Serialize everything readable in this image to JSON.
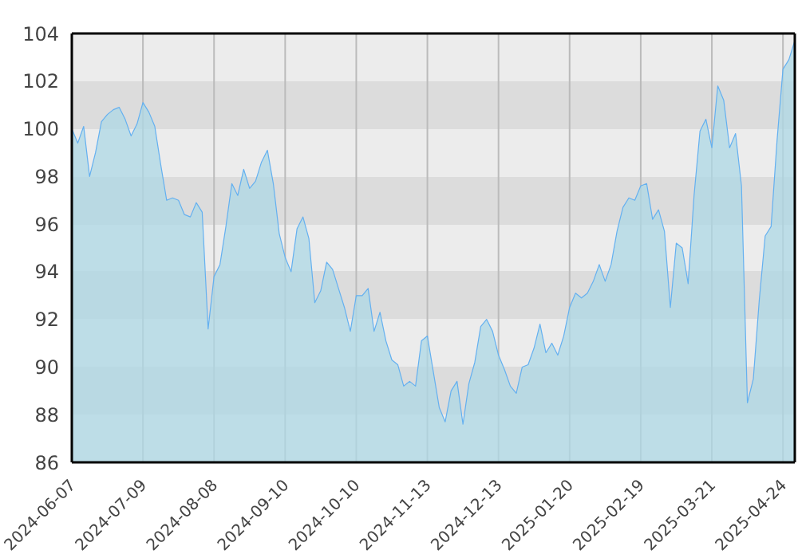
{
  "chart_data": {
    "type": "area",
    "categories": [
      "2024-06-07",
      null,
      null,
      null,
      null,
      null,
      null,
      null,
      null,
      null,
      null,
      null,
      "2024-07-09",
      null,
      null,
      null,
      null,
      null,
      null,
      null,
      null,
      null,
      null,
      null,
      "2024-08-08",
      null,
      null,
      null,
      null,
      null,
      null,
      null,
      null,
      null,
      null,
      null,
      "2024-09-10",
      null,
      null,
      null,
      null,
      null,
      null,
      null,
      null,
      null,
      null,
      null,
      "2024-10-10",
      null,
      null,
      null,
      null,
      null,
      null,
      null,
      null,
      null,
      null,
      null,
      "2024-11-13",
      null,
      null,
      null,
      null,
      null,
      null,
      null,
      null,
      null,
      null,
      null,
      "2024-12-13",
      null,
      null,
      null,
      null,
      null,
      null,
      null,
      null,
      null,
      null,
      null,
      "2025-01-20",
      null,
      null,
      null,
      null,
      null,
      null,
      null,
      null,
      null,
      null,
      null,
      "2025-02-19",
      null,
      null,
      null,
      null,
      null,
      null,
      null,
      null,
      null,
      null,
      null,
      "2025-03-21",
      null,
      null,
      null,
      null,
      null,
      null,
      null,
      null,
      null,
      null,
      null,
      "2025-04-24",
      null,
      null
    ],
    "series": [
      {
        "color": "#64b0f0",
        "values": [
          100.0,
          99.4,
          100.1,
          98.0,
          99.0,
          100.3,
          100.6,
          100.8,
          100.9,
          100.4,
          99.7,
          100.2,
          101.1,
          100.7,
          100.1,
          98.5,
          97.0,
          97.1,
          97.0,
          96.4,
          96.3,
          96.9,
          96.5,
          91.6,
          93.8,
          94.3,
          95.9,
          97.7,
          97.2,
          98.3,
          97.5,
          97.8,
          98.6,
          99.1,
          97.7,
          95.6,
          94.6,
          94.0,
          95.8,
          96.3,
          95.4,
          92.7,
          93.2,
          94.4,
          94.1,
          93.3,
          92.5,
          91.5,
          93.0,
          93.0,
          93.3,
          91.5,
          92.3,
          91.1,
          90.3,
          90.1,
          89.2,
          89.4,
          89.2,
          91.1,
          91.3,
          89.8,
          88.3,
          87.7,
          89.0,
          89.4,
          87.6,
          89.3,
          90.2,
          91.7,
          92.0,
          91.5,
          90.5,
          89.9,
          89.2,
          88.9,
          90.0,
          90.1,
          90.8,
          91.8,
          90.6,
          91.0,
          90.5,
          91.3,
          92.5,
          93.1,
          92.9,
          93.1,
          93.6,
          94.3,
          93.6,
          94.3,
          95.7,
          96.7,
          97.1,
          97.0,
          97.6,
          97.7,
          96.2,
          96.6,
          95.7,
          92.5,
          95.2,
          95.0,
          93.5,
          97.2,
          99.9,
          100.4,
          99.2,
          101.8,
          101.2,
          99.2,
          99.8,
          97.6,
          88.5,
          89.5,
          92.8,
          95.5,
          95.9,
          99.5,
          102.5,
          102.9,
          103.7
        ]
      }
    ],
    "ylim": [
      86,
      104
    ],
    "yticks": [
      86,
      88,
      90,
      92,
      94,
      96,
      98,
      100,
      102,
      104
    ],
    "grid": true,
    "legend": false
  }
}
